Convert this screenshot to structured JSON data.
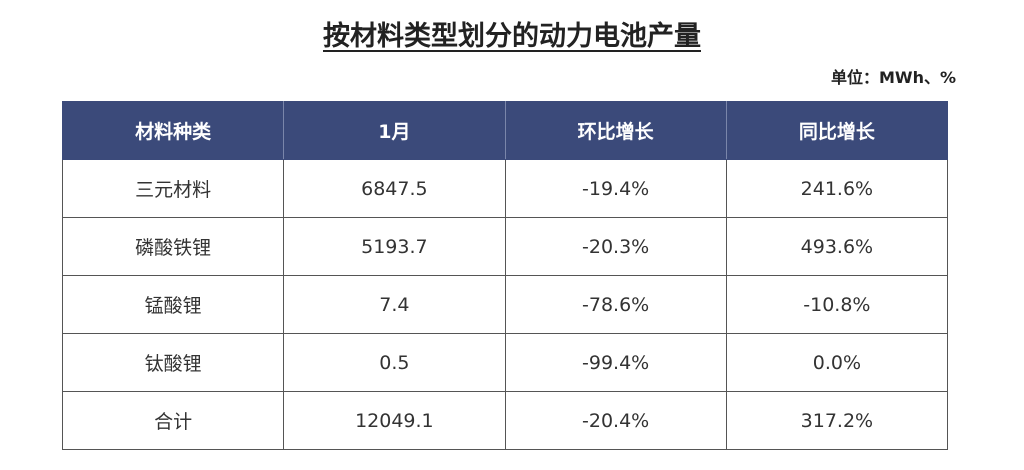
{
  "title": "按材料类型划分的动力电池产量",
  "unit": "单位：MWh、%",
  "header_color": "#3b4a7a",
  "table": {
    "columns": [
      "材料种类",
      "1月",
      "环比增长",
      "同比增长"
    ],
    "rows": [
      [
        "三元材料",
        "6847.5",
        "-19.4%",
        "241.6%"
      ],
      [
        "磷酸铁锂",
        "5193.7",
        "-20.3%",
        "493.6%"
      ],
      [
        "锰酸锂",
        "7.4",
        "-78.6%",
        "-10.8%"
      ],
      [
        "钛酸锂",
        "0.5",
        "-99.4%",
        "0.0%"
      ],
      [
        "合计",
        "12049.1",
        "-20.4%",
        "317.2%"
      ]
    ]
  }
}
